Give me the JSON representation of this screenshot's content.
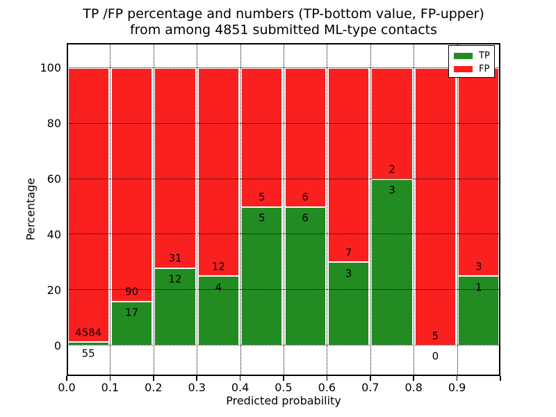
{
  "chart_data": {
    "type": "bar",
    "stacked": true,
    "normalized_to_percent": true,
    "title": "TP /FP percentage and numbers (TP-bottom value, FP-upper)",
    "title_line2": "from among 4851 submitted ML-type contacts",
    "xlabel": "Predicted probability",
    "ylabel": "Percentage",
    "categories": [
      "0.0-0.1",
      "0.1-0.2",
      "0.2-0.3",
      "0.3-0.4",
      "0.4-0.5",
      "0.5-0.6",
      "0.6-0.7",
      "0.7-0.8",
      "0.8-0.9",
      "0.9-1.0"
    ],
    "series": [
      {
        "name": "TP",
        "color": "#228b22",
        "counts": [
          55,
          17,
          12,
          4,
          5,
          6,
          3,
          3,
          0,
          1
        ]
      },
      {
        "name": "FP",
        "color": "#fa2020",
        "counts": [
          4584,
          90,
          31,
          12,
          5,
          6,
          7,
          2,
          5,
          3
        ]
      }
    ],
    "bar_value_labels": "TP count shown below segment boundary, FP count shown above segment boundary",
    "x_tick_labels": [
      "0.0",
      "0.1",
      "0.2",
      "0.3",
      "0.4",
      "0.5",
      "0.6",
      "0.7",
      "0.8",
      "0.9"
    ],
    "y_tick_values": [
      0,
      20,
      40,
      60,
      80,
      100
    ],
    "xlim": [
      0.0,
      1.0
    ],
    "ylim": [
      -11,
      109
    ],
    "bin_width": 0.1,
    "grid": {
      "on": true,
      "style": "dotted",
      "color": "#000000"
    },
    "legend": {
      "position": "upper right",
      "entries": [
        {
          "label": "TP",
          "color": "#228b22"
        },
        {
          "label": "FP",
          "color": "#fa2020"
        }
      ]
    },
    "frame_color": "#000000",
    "background_color": "#ffffff"
  }
}
